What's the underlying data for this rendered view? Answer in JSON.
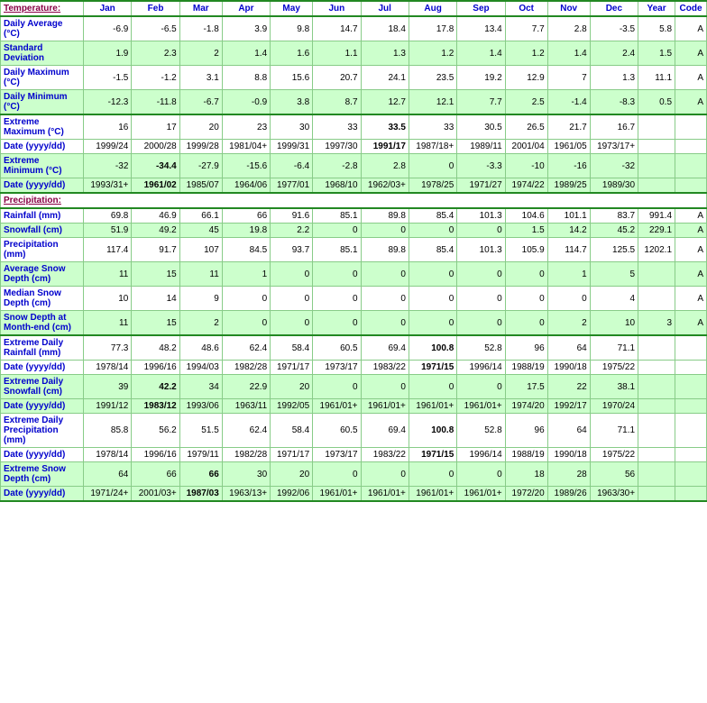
{
  "columns": [
    "Jan",
    "Feb",
    "Mar",
    "Apr",
    "May",
    "Jun",
    "Jul",
    "Aug",
    "Sep",
    "Oct",
    "Nov",
    "Dec",
    "Year",
    "Code"
  ],
  "sections": {
    "temperature": "Temperature:",
    "precipitation": "Precipitation:"
  },
  "temp_rows": [
    {
      "label": "Daily Average (°C)",
      "bg": "white",
      "vals": [
        "-6.9",
        "-6.5",
        "-1.8",
        "3.9",
        "9.8",
        "14.7",
        "18.4",
        "17.8",
        "13.4",
        "7.7",
        "2.8",
        "-3.5",
        "5.8",
        "A"
      ]
    },
    {
      "label": "Standard Deviation",
      "bg": "green",
      "vals": [
        "1.9",
        "2.3",
        "2",
        "1.4",
        "1.6",
        "1.1",
        "1.3",
        "1.2",
        "1.4",
        "1.2",
        "1.4",
        "2.4",
        "1.5",
        "A"
      ]
    },
    {
      "label": "Daily Maximum (°C)",
      "bg": "white",
      "vals": [
        "-1.5",
        "-1.2",
        "3.1",
        "8.8",
        "15.6",
        "20.7",
        "24.1",
        "23.5",
        "19.2",
        "12.9",
        "7",
        "1.3",
        "11.1",
        "A"
      ]
    },
    {
      "label": "Daily Minimum (°C)",
      "bg": "green",
      "vals": [
        "-12.3",
        "-11.8",
        "-6.7",
        "-0.9",
        "3.8",
        "8.7",
        "12.7",
        "12.1",
        "7.7",
        "2.5",
        "-1.4",
        "-8.3",
        "0.5",
        "A"
      ],
      "bottom": true
    },
    {
      "label": "Extreme Maximum (°C)",
      "bg": "white",
      "vals": [
        "16",
        "17",
        "20",
        "23",
        "30",
        "33",
        "33.5",
        "33",
        "30.5",
        "26.5",
        "21.7",
        "16.7",
        "",
        ""
      ],
      "bold": [
        6
      ],
      "top": true
    },
    {
      "label": "Date (yyyy/dd)",
      "bg": "white",
      "vals": [
        "1999/24",
        "2000/28",
        "1999/28",
        "1981/04+",
        "1999/31",
        "1997/30",
        "1991/17",
        "1987/18+",
        "1989/11",
        "2001/04",
        "1961/05",
        "1973/17+",
        "",
        ""
      ],
      "bold": [
        6
      ]
    },
    {
      "label": "Extreme Minimum (°C)",
      "bg": "green",
      "vals": [
        "-32",
        "-34.4",
        "-27.9",
        "-15.6",
        "-6.4",
        "-2.8",
        "2.8",
        "0",
        "-3.3",
        "-10",
        "-16",
        "-32",
        "",
        ""
      ],
      "bold": [
        1
      ]
    },
    {
      "label": "Date (yyyy/dd)",
      "bg": "green",
      "vals": [
        "1993/31+",
        "1961/02",
        "1985/07",
        "1964/06",
        "1977/01",
        "1968/10",
        "1962/03+",
        "1978/25",
        "1971/27",
        "1974/22",
        "1989/25",
        "1989/30",
        "",
        ""
      ],
      "bold": [
        1
      ]
    }
  ],
  "precip_rows": [
    {
      "label": "Rainfall (mm)",
      "bg": "white",
      "vals": [
        "69.8",
        "46.9",
        "66.1",
        "66",
        "91.6",
        "85.1",
        "89.8",
        "85.4",
        "101.3",
        "104.6",
        "101.1",
        "83.7",
        "991.4",
        "A"
      ]
    },
    {
      "label": "Snowfall (cm)",
      "bg": "green",
      "vals": [
        "51.9",
        "49.2",
        "45",
        "19.8",
        "2.2",
        "0",
        "0",
        "0",
        "0",
        "1.5",
        "14.2",
        "45.2",
        "229.1",
        "A"
      ]
    },
    {
      "label": "Precipitation (mm)",
      "bg": "white",
      "vals": [
        "117.4",
        "91.7",
        "107",
        "84.5",
        "93.7",
        "85.1",
        "89.8",
        "85.4",
        "101.3",
        "105.9",
        "114.7",
        "125.5",
        "1202.1",
        "A"
      ]
    },
    {
      "label": "Average Snow Depth (cm)",
      "bg": "green",
      "vals": [
        "11",
        "15",
        "11",
        "1",
        "0",
        "0",
        "0",
        "0",
        "0",
        "0",
        "1",
        "5",
        "",
        "A"
      ]
    },
    {
      "label": "Median Snow Depth (cm)",
      "bg": "white",
      "vals": [
        "10",
        "14",
        "9",
        "0",
        "0",
        "0",
        "0",
        "0",
        "0",
        "0",
        "0",
        "4",
        "",
        "A"
      ]
    },
    {
      "label": "Snow Depth at Month-end (cm)",
      "bg": "green",
      "vals": [
        "11",
        "15",
        "2",
        "0",
        "0",
        "0",
        "0",
        "0",
        "0",
        "0",
        "2",
        "10",
        "3",
        "A"
      ],
      "bottom": true
    },
    {
      "label": "Extreme Daily Rainfall (mm)",
      "bg": "white",
      "vals": [
        "77.3",
        "48.2",
        "48.6",
        "62.4",
        "58.4",
        "60.5",
        "69.4",
        "100.8",
        "52.8",
        "96",
        "64",
        "71.1",
        "",
        ""
      ],
      "bold": [
        7
      ],
      "top": true
    },
    {
      "label": "Date (yyyy/dd)",
      "bg": "white",
      "vals": [
        "1978/14",
        "1996/16",
        "1994/03",
        "1982/28",
        "1971/17",
        "1973/17",
        "1983/22",
        "1971/15",
        "1996/14",
        "1988/19",
        "1990/18",
        "1975/22",
        "",
        ""
      ],
      "bold": [
        7
      ]
    },
    {
      "label": "Extreme Daily Snowfall (cm)",
      "bg": "green",
      "vals": [
        "39",
        "42.2",
        "34",
        "22.9",
        "20",
        "0",
        "0",
        "0",
        "0",
        "17.5",
        "22",
        "38.1",
        "",
        ""
      ],
      "bold": [
        1
      ]
    },
    {
      "label": "Date (yyyy/dd)",
      "bg": "green",
      "vals": [
        "1991/12",
        "1983/12",
        "1993/06",
        "1963/11",
        "1992/05",
        "1961/01+",
        "1961/01+",
        "1961/01+",
        "1961/01+",
        "1974/20",
        "1992/17",
        "1970/24",
        "",
        ""
      ],
      "bold": [
        1
      ]
    },
    {
      "label": "Extreme Daily Precipitation (mm)",
      "bg": "white",
      "vals": [
        "85.8",
        "56.2",
        "51.5",
        "62.4",
        "58.4",
        "60.5",
        "69.4",
        "100.8",
        "52.8",
        "96",
        "64",
        "71.1",
        "",
        ""
      ],
      "bold": [
        7
      ]
    },
    {
      "label": "Date (yyyy/dd)",
      "bg": "white",
      "vals": [
        "1978/14",
        "1996/16",
        "1979/11",
        "1982/28",
        "1971/17",
        "1973/17",
        "1983/22",
        "1971/15",
        "1996/14",
        "1988/19",
        "1990/18",
        "1975/22",
        "",
        ""
      ],
      "bold": [
        7
      ]
    },
    {
      "label": "Extreme Snow Depth (cm)",
      "bg": "green",
      "vals": [
        "64",
        "66",
        "66",
        "30",
        "20",
        "0",
        "0",
        "0",
        "0",
        "18",
        "28",
        "56",
        "",
        ""
      ],
      "bold": [
        2
      ]
    },
    {
      "label": "Date (yyyy/dd)",
      "bg": "green",
      "vals": [
        "1971/24+",
        "2001/03+",
        "1987/03",
        "1963/13+",
        "1992/06",
        "1961/01+",
        "1961/01+",
        "1961/01+",
        "1961/01+",
        "1972/20",
        "1989/26",
        "1963/30+",
        "",
        ""
      ],
      "bold": [
        2
      ],
      "bottom": true
    }
  ]
}
